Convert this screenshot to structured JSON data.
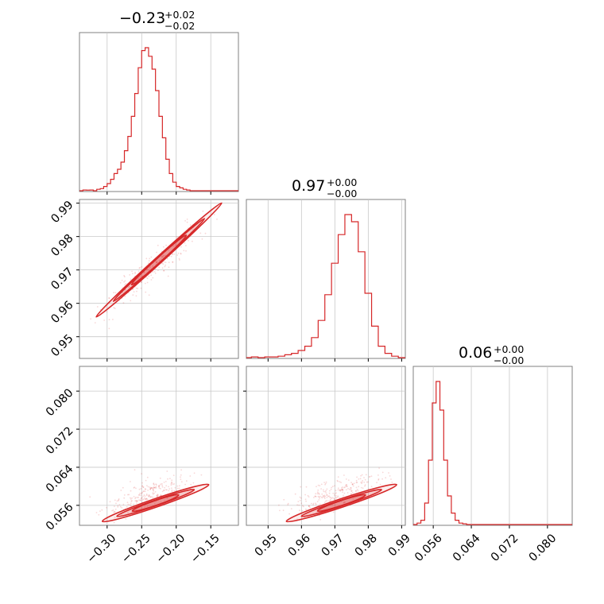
{
  "chart_data": {
    "type": "corner",
    "color": "#d62728",
    "grid": true,
    "parameters": [
      {
        "title_value": "−0.23",
        "title_plus": "+0.02",
        "title_minus": "−0.02",
        "range": [
          -0.34,
          -0.11
        ],
        "ticks": [
          -0.3,
          -0.25,
          -0.2,
          -0.15
        ],
        "tick_labels": [
          "−0.30",
          "−0.25",
          "−0.20",
          "−0.15"
        ]
      },
      {
        "title_value": "0.97",
        "title_plus": "+0.00",
        "title_minus": "−0.00",
        "range": [
          0.9435,
          0.9911
        ],
        "ticks": [
          0.95,
          0.96,
          0.97,
          0.98,
          0.99
        ],
        "tick_labels": [
          "0.95",
          "0.96",
          "0.97",
          "0.98",
          "0.99"
        ]
      },
      {
        "title_value": "0.06",
        "title_plus": "+0.00",
        "title_minus": "−0.00",
        "range": [
          0.0518,
          0.0852
        ],
        "ticks": [
          0.056,
          0.064,
          0.072,
          0.08
        ],
        "tick_labels": [
          "0.056",
          "0.064",
          "0.072",
          "0.080"
        ]
      }
    ],
    "histograms": [
      {
        "x": [
          -0.34,
          -0.335,
          -0.33,
          -0.325,
          -0.32,
          -0.315,
          -0.31,
          -0.305,
          -0.3,
          -0.295,
          -0.29,
          -0.285,
          -0.28,
          -0.275,
          -0.27,
          -0.265,
          -0.26,
          -0.255,
          -0.25,
          -0.245,
          -0.24,
          -0.235,
          -0.23,
          -0.225,
          -0.22,
          -0.215,
          -0.21,
          -0.205,
          -0.2,
          -0.195,
          -0.19,
          -0.185,
          -0.18,
          -0.175,
          -0.17,
          -0.165,
          -0.16,
          -0.155,
          -0.15,
          -0.145,
          -0.14,
          -0.135,
          -0.13,
          -0.125,
          -0.12,
          -0.115,
          -0.11
        ],
        "density": [
          0,
          0.005,
          0.004,
          0.005,
          0,
          0.01,
          0.015,
          0.03,
          0.05,
          0.08,
          0.12,
          0.15,
          0.2,
          0.28,
          0.38,
          0.52,
          0.68,
          0.86,
          0.98,
          1.0,
          0.94,
          0.85,
          0.7,
          0.52,
          0.37,
          0.22,
          0.12,
          0.06,
          0.03,
          0.02,
          0.01,
          0.005,
          0,
          0,
          0,
          0,
          0,
          0,
          0,
          0,
          0,
          0,
          0,
          0,
          0,
          0
        ]
      },
      {
        "x": [
          0.9435,
          0.945,
          0.947,
          0.949,
          0.951,
          0.953,
          0.955,
          0.957,
          0.959,
          0.961,
          0.963,
          0.965,
          0.967,
          0.969,
          0.971,
          0.973,
          0.975,
          0.977,
          0.979,
          0.981,
          0.983,
          0.985,
          0.987,
          0.989,
          0.9911
        ],
        "density": [
          0,
          0.005,
          0,
          0.005,
          0.005,
          0.01,
          0.02,
          0.03,
          0.05,
          0.08,
          0.14,
          0.26,
          0.44,
          0.66,
          0.86,
          1.0,
          0.95,
          0.74,
          0.45,
          0.22,
          0.08,
          0.03,
          0.01,
          0
        ]
      },
      {
        "x": [
          0.0518,
          0.0526,
          0.0534,
          0.0542,
          0.055,
          0.0558,
          0.0566,
          0.0574,
          0.0582,
          0.059,
          0.0598,
          0.0606,
          0.0614,
          0.0622,
          0.063,
          0.0638,
          0.0646,
          0.0654,
          0.0662,
          0.067,
          0.0678,
          0.0686,
          0.0694,
          0.0702,
          0.071,
          0.0718,
          0.0726,
          0.0734,
          0.0742,
          0.075,
          0.0758,
          0.0766,
          0.0774,
          0.0782,
          0.079,
          0.0798,
          0.0806,
          0.0814,
          0.0822,
          0.083,
          0.0838,
          0.0846,
          0.0852
        ],
        "density": [
          0,
          0.01,
          0.03,
          0.15,
          0.45,
          0.85,
          1.0,
          0.8,
          0.45,
          0.2,
          0.08,
          0.03,
          0.01,
          0.005,
          0,
          0,
          0,
          0,
          0,
          0,
          0,
          0,
          0,
          0,
          0,
          0,
          0,
          0,
          0,
          0,
          0,
          0,
          0,
          0,
          0,
          0,
          0,
          0,
          0,
          0,
          0,
          0
        ]
      }
    ],
    "joint_distributions": [
      {
        "pair": [
          0,
          1
        ],
        "center": [
          -0.225,
          0.973
        ],
        "axis_a": [
          -0.32,
          0.9545
        ],
        "axis_b": [
          -0.155,
          0.9855
        ],
        "spread_b_levels": [
          0.0006,
          0.0012,
          0.0018
        ]
      },
      {
        "pair": [
          0,
          2
        ],
        "center": [
          -0.23,
          0.0565
        ],
        "axis_a": [
          -0.31,
          0.0548
        ],
        "axis_b": [
          -0.17,
          0.0618
        ],
        "spread_b_levels": [
          0.0006,
          0.0011,
          0.0016
        ]
      },
      {
        "pair": [
          1,
          2
        ],
        "center": [
          0.972,
          0.0565
        ],
        "axis_a": [
          0.955,
          0.0548
        ],
        "axis_b": [
          0.985,
          0.0618
        ],
        "spread_b_levels": [
          0.0006,
          0.0011,
          0.0016
        ]
      }
    ]
  }
}
